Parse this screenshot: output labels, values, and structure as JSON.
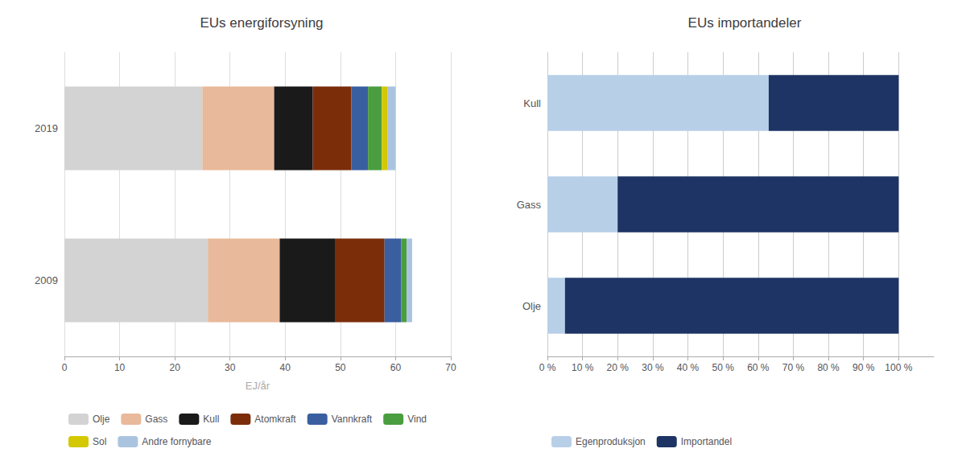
{
  "chart_data": [
    {
      "type": "bar",
      "orientation": "horizontal",
      "stacked": true,
      "title": "EUs energiforsyning",
      "xlabel": "EJ/år",
      "categories": [
        "2019",
        "2009"
      ],
      "series": [
        {
          "name": "Olje",
          "color": "#d3d3d3",
          "values": [
            25,
            26
          ]
        },
        {
          "name": "Gass",
          "color": "#e8b99a",
          "values": [
            13,
            13
          ]
        },
        {
          "name": "Kull",
          "color": "#1a1a1a",
          "values": [
            7,
            10
          ]
        },
        {
          "name": "Atomkraft",
          "color": "#7b2d0a",
          "values": [
            7,
            9
          ]
        },
        {
          "name": "Vannkraft",
          "color": "#3a5fa0",
          "values": [
            3,
            3
          ]
        },
        {
          "name": "Vind",
          "color": "#4a9e3f",
          "values": [
            2.5,
            1
          ]
        },
        {
          "name": "Sol",
          "color": "#d4c800",
          "values": [
            1,
            0
          ]
        },
        {
          "name": "Andre fornybare",
          "color": "#aac4e0",
          "values": [
            1.5,
            1
          ]
        }
      ],
      "xlim": [
        0,
        70
      ],
      "xticks": [
        0,
        10,
        20,
        30,
        40,
        50,
        60,
        70
      ],
      "grid": true,
      "legend": "bottom"
    },
    {
      "type": "bar",
      "orientation": "horizontal",
      "stacked": true,
      "title": "EUs importandeler",
      "categories": [
        "Kull",
        "Gass",
        "Olje"
      ],
      "series": [
        {
          "name": "Egenproduksjon",
          "color": "#b8cfe8",
          "values": [
            63,
            20,
            5
          ]
        },
        {
          "name": "Importandel",
          "color": "#1e3464",
          "values": [
            37,
            80,
            95
          ]
        }
      ],
      "xlim": [
        0,
        110
      ],
      "xticks": [
        {
          "value": 0,
          "label": "0 %"
        },
        {
          "value": 10,
          "label": "10 %"
        },
        {
          "value": 20,
          "label": "20 %"
        },
        {
          "value": 30,
          "label": "30 %"
        },
        {
          "value": 40,
          "label": "40 %"
        },
        {
          "value": 50,
          "label": "50 %"
        },
        {
          "value": 60,
          "label": "60 %"
        },
        {
          "value": 70,
          "label": "70 %"
        },
        {
          "value": 80,
          "label": "80 %"
        },
        {
          "value": 90,
          "label": "90 %"
        },
        {
          "value": 100,
          "label": "100 %"
        }
      ],
      "grid": true,
      "legend": "bottom"
    }
  ]
}
